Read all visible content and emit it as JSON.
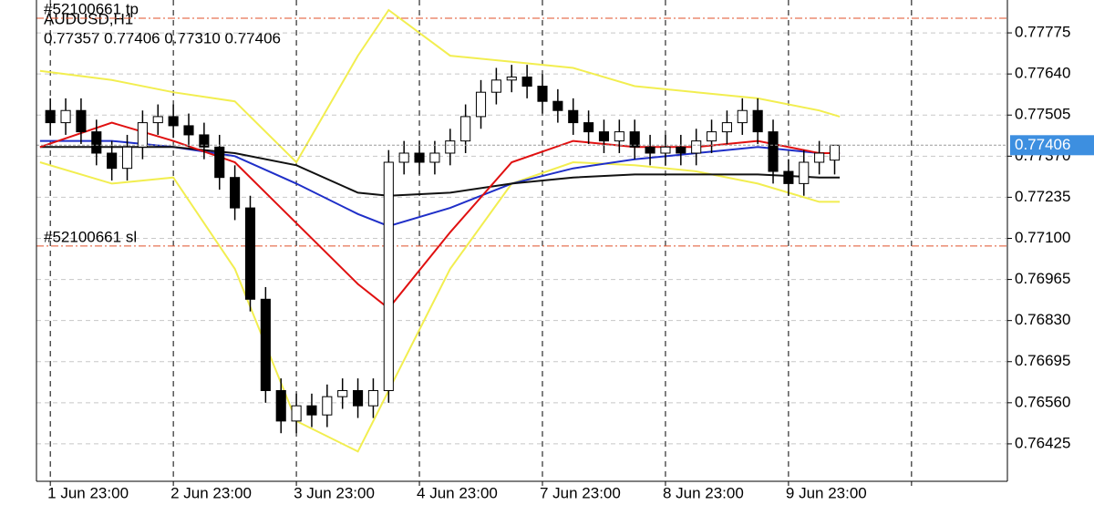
{
  "chart_data": {
    "type": "candlestick",
    "symbol": "AUDUSD,H1",
    "info": "0.77357 0.77406 0.77310 0.77406",
    "x": [
      0,
      3,
      6,
      9,
      12,
      15,
      18,
      21,
      24,
      27,
      30,
      33,
      36,
      39,
      42,
      45,
      48,
      51,
      54,
      57,
      60,
      63,
      66,
      69,
      72,
      75,
      78,
      81,
      84,
      87,
      90,
      93,
      96,
      99,
      102,
      105,
      108,
      111,
      114,
      117,
      120,
      123,
      126,
      129,
      132,
      135,
      138,
      141,
      144,
      147,
      150,
      153
    ],
    "open": [
      0.7752,
      0.7748,
      0.7752,
      0.7745,
      0.7738,
      0.7733,
      0.774,
      0.7748,
      0.775,
      0.7747,
      0.7744,
      0.774,
      0.773,
      0.772,
      0.769,
      0.766,
      0.765,
      0.7655,
      0.7652,
      0.7658,
      0.766,
      0.7655,
      0.766,
      0.7735,
      0.7738,
      0.7735,
      0.7738,
      0.7742,
      0.775,
      0.7758,
      0.7762,
      0.7763,
      0.776,
      0.7755,
      0.7752,
      0.7748,
      0.7745,
      0.7742,
      0.7745,
      0.774,
      0.7738,
      0.774,
      0.7738,
      0.7742,
      0.7745,
      0.7748,
      0.7752,
      0.7745,
      0.7732,
      0.7728,
      0.7735,
      0.77357
    ],
    "high": [
      0.7756,
      0.7756,
      0.7756,
      0.7749,
      0.7742,
      0.7744,
      0.7752,
      0.7754,
      0.7754,
      0.7751,
      0.7748,
      0.7744,
      0.7734,
      0.7724,
      0.7694,
      0.7664,
      0.7659,
      0.7659,
      0.7662,
      0.7664,
      0.7664,
      0.7664,
      0.7739,
      0.7742,
      0.7742,
      0.7742,
      0.7746,
      0.7754,
      0.7762,
      0.7766,
      0.7767,
      0.7767,
      0.7764,
      0.7759,
      0.7756,
      0.7752,
      0.7749,
      0.7749,
      0.7749,
      0.7744,
      0.7744,
      0.7744,
      0.7746,
      0.7749,
      0.7752,
      0.7756,
      0.7756,
      0.7749,
      0.7736,
      0.7739,
      0.7742,
      0.77406
    ],
    "low": [
      0.7744,
      0.7744,
      0.7741,
      0.7734,
      0.7729,
      0.7729,
      0.7736,
      0.7744,
      0.7743,
      0.774,
      0.7736,
      0.7726,
      0.7716,
      0.7686,
      0.7656,
      0.7646,
      0.7646,
      0.7648,
      0.7648,
      0.7654,
      0.7651,
      0.7651,
      0.7656,
      0.7731,
      0.7731,
      0.7731,
      0.7734,
      0.7738,
      0.7746,
      0.7754,
      0.7758,
      0.7756,
      0.7751,
      0.7748,
      0.7744,
      0.7741,
      0.7738,
      0.7738,
      0.7736,
      0.7734,
      0.7734,
      0.7734,
      0.7734,
      0.7738,
      0.7741,
      0.7744,
      0.7741,
      0.7728,
      0.7724,
      0.7724,
      0.7731,
      0.7731
    ],
    "close": [
      0.7748,
      0.7752,
      0.7745,
      0.7738,
      0.7733,
      0.774,
      0.7748,
      0.775,
      0.7747,
      0.7744,
      0.774,
      0.773,
      0.772,
      0.769,
      0.766,
      0.765,
      0.7655,
      0.7652,
      0.7658,
      0.766,
      0.7655,
      0.766,
      0.7735,
      0.7738,
      0.7735,
      0.7738,
      0.7742,
      0.775,
      0.7758,
      0.7762,
      0.7763,
      0.776,
      0.7755,
      0.7752,
      0.7748,
      0.7745,
      0.7742,
      0.7745,
      0.774,
      0.7738,
      0.774,
      0.7738,
      0.7742,
      0.7745,
      0.7748,
      0.7752,
      0.7745,
      0.7732,
      0.7728,
      0.7735,
      0.7738,
      0.77406
    ],
    "up_color": "#ffffff",
    "down_color": "#000000",
    "wick_color": "#000000",
    "lines": [
      {
        "color": "#f2ee50",
        "x": [
          -2,
          12,
          24,
          36,
          48,
          60,
          66,
          78,
          90,
          102,
          114,
          126,
          138,
          150,
          154
        ],
        "values": [
          0.7765,
          0.7762,
          0.7758,
          0.7755,
          0.7735,
          0.777,
          0.7785,
          0.777,
          0.7768,
          0.7766,
          0.776,
          0.7758,
          0.7756,
          0.7752,
          0.775
        ]
      },
      {
        "color": "#f2ee50",
        "x": [
          -2,
          12,
          24,
          36,
          48,
          60,
          66,
          78,
          90,
          102,
          114,
          126,
          138,
          150,
          154
        ],
        "values": [
          0.7735,
          0.7728,
          0.773,
          0.77,
          0.765,
          0.764,
          0.766,
          0.77,
          0.7728,
          0.7735,
          0.7734,
          0.7732,
          0.7728,
          0.7722,
          0.7722
        ]
      },
      {
        "color": "#1f2fc8",
        "x": [
          -2,
          12,
          24,
          36,
          48,
          60,
          66,
          78,
          90,
          102,
          114,
          126,
          138,
          150,
          154
        ],
        "values": [
          0.7742,
          0.7742,
          0.774,
          0.7737,
          0.7728,
          0.7718,
          0.7714,
          0.772,
          0.7728,
          0.7733,
          0.7736,
          0.7738,
          0.774,
          0.7738,
          0.7738
        ]
      },
      {
        "color": "#111111",
        "x": [
          -2,
          12,
          24,
          36,
          48,
          60,
          66,
          78,
          90,
          102,
          114,
          126,
          138,
          150,
          154
        ],
        "values": [
          0.774,
          0.774,
          0.774,
          0.7738,
          0.7734,
          0.7725,
          0.7724,
          0.7725,
          0.7728,
          0.773,
          0.7731,
          0.7731,
          0.7731,
          0.773,
          0.773
        ]
      },
      {
        "color": "#e01010",
        "x": [
          -2,
          12,
          24,
          36,
          48,
          60,
          66,
          78,
          90,
          102,
          114,
          126,
          138,
          150,
          154
        ],
        "values": [
          0.774,
          0.7748,
          0.7742,
          0.7735,
          0.7715,
          0.7695,
          0.7687,
          0.7712,
          0.7735,
          0.7742,
          0.774,
          0.774,
          0.7742,
          0.7738,
          0.7738
        ]
      }
    ],
    "levels": [
      {
        "label": "#52100661 tp",
        "value": 0.77823,
        "color": "#e0502a"
      },
      {
        "label": "#52100661 sl",
        "value": 0.77075,
        "color": "#e0502a"
      }
    ],
    "bid": 0.77406,
    "bid_color": "#3d8fe0",
    "xlim": [
      -2.7,
      186.7
    ],
    "ylim": [
      0.76302,
      0.77883
    ],
    "xticks": [
      {
        "value": 0,
        "label": "1 Jun 23:00"
      },
      {
        "value": 24,
        "label": "2 Jun 23:00"
      },
      {
        "value": 48,
        "label": "3 Jun 23:00"
      },
      {
        "value": 72,
        "label": "4 Jun 23:00"
      },
      {
        "value": 96,
        "label": "7 Jun 23:00"
      },
      {
        "value": 120,
        "label": "8 Jun 23:00"
      },
      {
        "value": 144,
        "label": "9 Jun 23:00"
      },
      {
        "value": 168,
        "label": null
      }
    ],
    "yticks": [
      {
        "value": 0.77775,
        "label": "0.77775"
      },
      {
        "value": 0.7764,
        "label": "0.77640"
      },
      {
        "value": 0.77505,
        "label": "0.77505"
      },
      {
        "value": 0.7737,
        "label": "0.77370"
      },
      {
        "value": 0.77235,
        "label": "0.77235"
      },
      {
        "value": 0.771,
        "label": "0.77100"
      },
      {
        "value": 0.76965,
        "label": "0.76965"
      },
      {
        "value": 0.7683,
        "label": "0.76830"
      },
      {
        "value": 0.76695,
        "label": "0.76695"
      },
      {
        "value": 0.7656,
        "label": "0.76560"
      },
      {
        "value": 0.76425,
        "label": "0.76425"
      }
    ],
    "grid": true
  }
}
